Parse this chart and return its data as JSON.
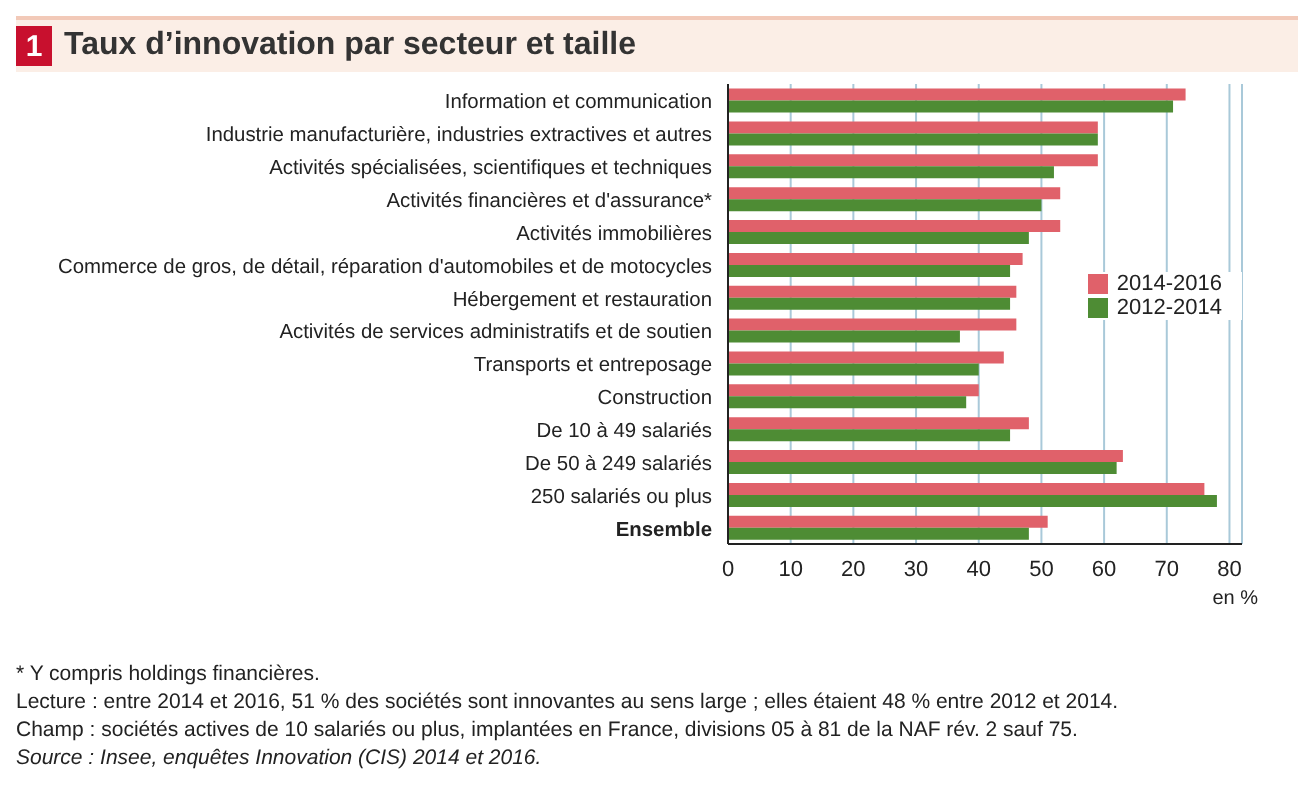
{
  "chart_data": {
    "type": "bar",
    "orientation": "horizontal",
    "title": "Taux d’innovation par secteur et taille",
    "categories": [
      "Information et communication",
      "Industrie manufacturière, industries extractives et autres",
      "Activités spécialisées, scientifiques et techniques",
      "Activités financières et d'assurance*",
      "Activités immobilières",
      "Commerce de gros, de détail, réparation d'automobiles et de motocycles",
      "Hébergement et restauration",
      "Activités de services administratifs et de soutien",
      "Transports et entreposage",
      "Construction",
      "De 10 à 49 salariés",
      "De 50 à 249 salariés",
      "250 salariés ou plus",
      "Ensemble"
    ],
    "series": [
      {
        "name": "2014-2016",
        "color": "#e0616a",
        "values": [
          73,
          59,
          59,
          53,
          53,
          47,
          46,
          46,
          44,
          40,
          48,
          63,
          76,
          51
        ]
      },
      {
        "name": "2012-2014",
        "color": "#4e8c34",
        "values": [
          71,
          59,
          52,
          50,
          48,
          45,
          45,
          37,
          40,
          38,
          45,
          62,
          78,
          48
        ]
      }
    ],
    "xlim": [
      0,
      82
    ],
    "xticks": [
      0,
      10,
      20,
      30,
      40,
      50,
      60,
      70,
      80
    ],
    "xlabel": "en %",
    "grid": "x",
    "legend": "right",
    "annotations": [
      "1",
      "* Y compris holdings financières.",
      "Lecture : entre 2014 et 2016, 51 % des sociétés sont innovantes au sens large ; elles étaient 48 % entre 2012 et 2014.",
      "Champ : sociétés actives de 10 salariés ou plus, implantées en France, divisions 05 à 81 de la NAF rév. 2 sauf 75.",
      "Source : Insee, enquêtes Innovation (CIS) 2014 et 2016."
    ]
  }
}
